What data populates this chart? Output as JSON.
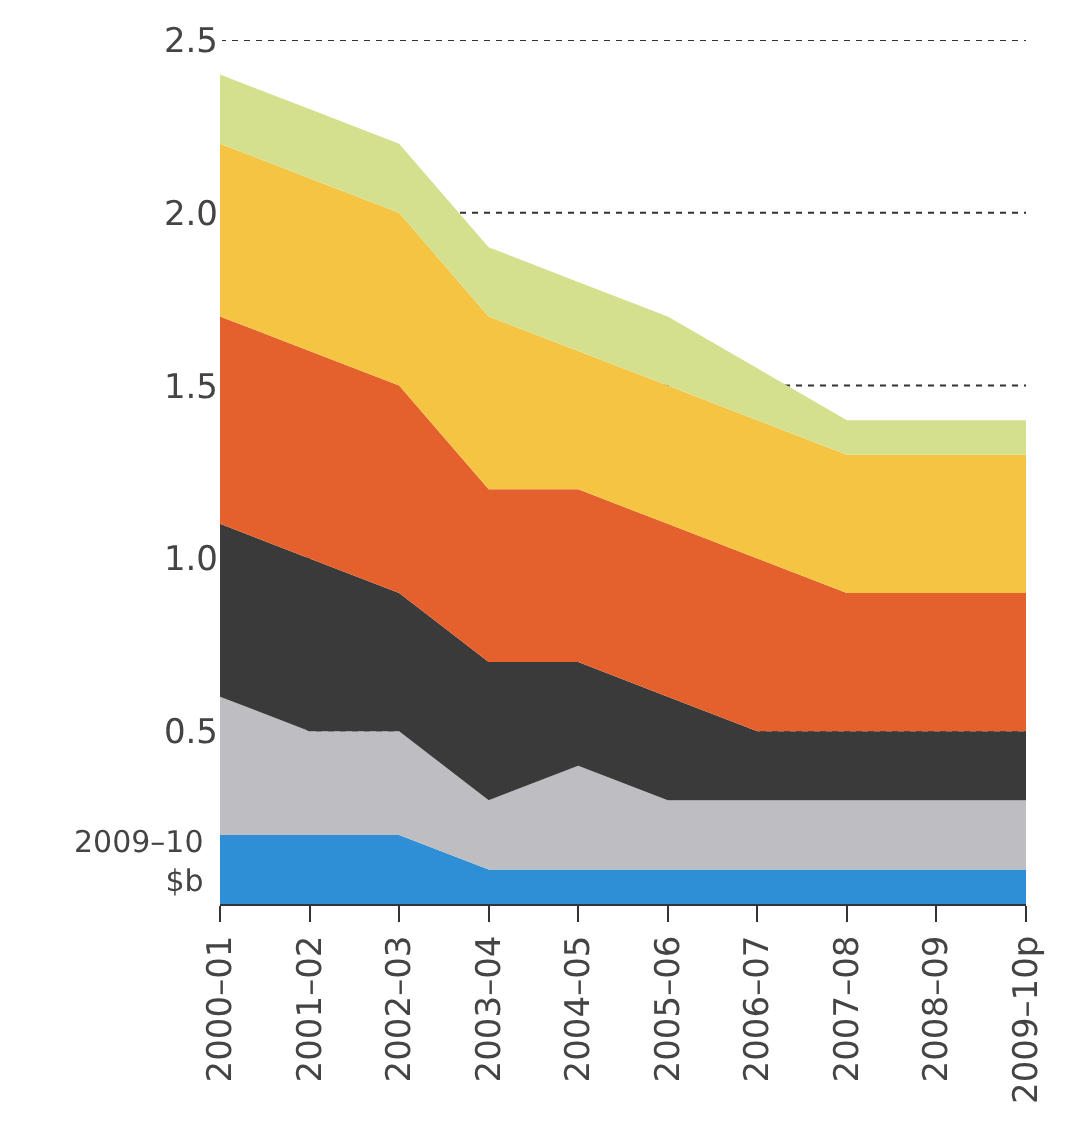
{
  "chart_data": {
    "type": "area",
    "stacked": true,
    "ylabel": "2009–10\n$b",
    "categories": [
      "2000–01",
      "2001–02",
      "2002–03",
      "2003–04",
      "2004–05",
      "2005–06",
      "2006–07",
      "2007–08",
      "2008–09",
      "2009–10p"
    ],
    "series": [
      {
        "color": "#2f8fd6",
        "values": [
          0.2,
          0.2,
          0.2,
          0.1,
          0.1,
          0.1,
          0.1,
          0.1,
          0.1,
          0.1
        ]
      },
      {
        "color": "#bdbdc2",
        "values": [
          0.4,
          0.3,
          0.3,
          0.2,
          0.3,
          0.2,
          0.2,
          0.2,
          0.2,
          0.2
        ]
      },
      {
        "color": "#3a3a3a",
        "values": [
          0.5,
          0.5,
          0.4,
          0.4,
          0.3,
          0.3,
          0.2,
          0.2,
          0.2,
          0.2
        ]
      },
      {
        "color": "#e4602c",
        "values": [
          0.6,
          0.6,
          0.6,
          0.5,
          0.5,
          0.5,
          0.5,
          0.4,
          0.4,
          0.4
        ]
      },
      {
        "color": "#f6c443",
        "values": [
          0.5,
          0.5,
          0.5,
          0.5,
          0.4,
          0.4,
          0.4,
          0.4,
          0.4,
          0.4
        ]
      },
      {
        "color": "#d5e08f",
        "values": [
          0.2,
          0.2,
          0.2,
          0.2,
          0.2,
          0.2,
          0.15,
          0.1,
          0.1,
          0.1
        ]
      }
    ],
    "ylim": [
      0,
      2.5
    ],
    "yticks": [
      {
        "value": 0,
        "label": null
      },
      {
        "value": 0.5,
        "label": "0.5"
      },
      {
        "value": 1,
        "label": "1.0"
      },
      {
        "value": 1.5,
        "label": "1.5"
      },
      {
        "value": 2,
        "label": "2.0"
      },
      {
        "value": 2.5,
        "label": "2.5"
      }
    ],
    "grid": "y"
  }
}
